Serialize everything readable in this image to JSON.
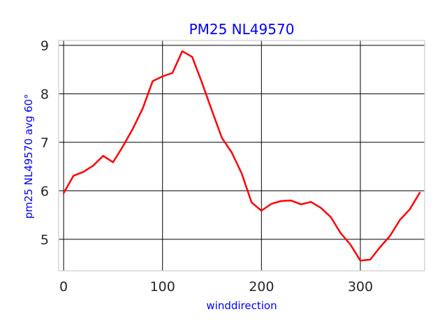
{
  "chart_data": {
    "type": "line",
    "title": "PM25 NL49570",
    "xlabel": "winddirection",
    "ylabel": "pm25 NL49570 avg 60°",
    "xlim": [
      -5,
      365
    ],
    "ylim": [
      4.35,
      9.1
    ],
    "xticks": [
      0,
      100,
      200,
      300
    ],
    "yticks": [
      5,
      6,
      7,
      8,
      9
    ],
    "grid": true,
    "colors": {
      "line": "#ff0000",
      "title": "#0000ff",
      "label": "#0000ff"
    },
    "series": [
      {
        "x": [
          0,
          10,
          20,
          30,
          40,
          50,
          60,
          70,
          80,
          90,
          100,
          110,
          120,
          130,
          140,
          150,
          160,
          170,
          180,
          190,
          200,
          210,
          220,
          230,
          240,
          250,
          260,
          270,
          280,
          290,
          300,
          310,
          320,
          330,
          340,
          350,
          360
        ],
        "values": [
          5.95,
          6.31,
          6.39,
          6.52,
          6.72,
          6.59,
          6.92,
          7.28,
          7.7,
          8.26,
          8.36,
          8.43,
          8.88,
          8.76,
          8.22,
          7.65,
          7.09,
          6.79,
          6.36,
          5.76,
          5.59,
          5.73,
          5.79,
          5.8,
          5.72,
          5.77,
          5.65,
          5.46,
          5.13,
          4.89,
          4.56,
          4.58,
          4.84,
          5.07,
          5.4,
          5.62,
          5.96
        ]
      }
    ]
  }
}
